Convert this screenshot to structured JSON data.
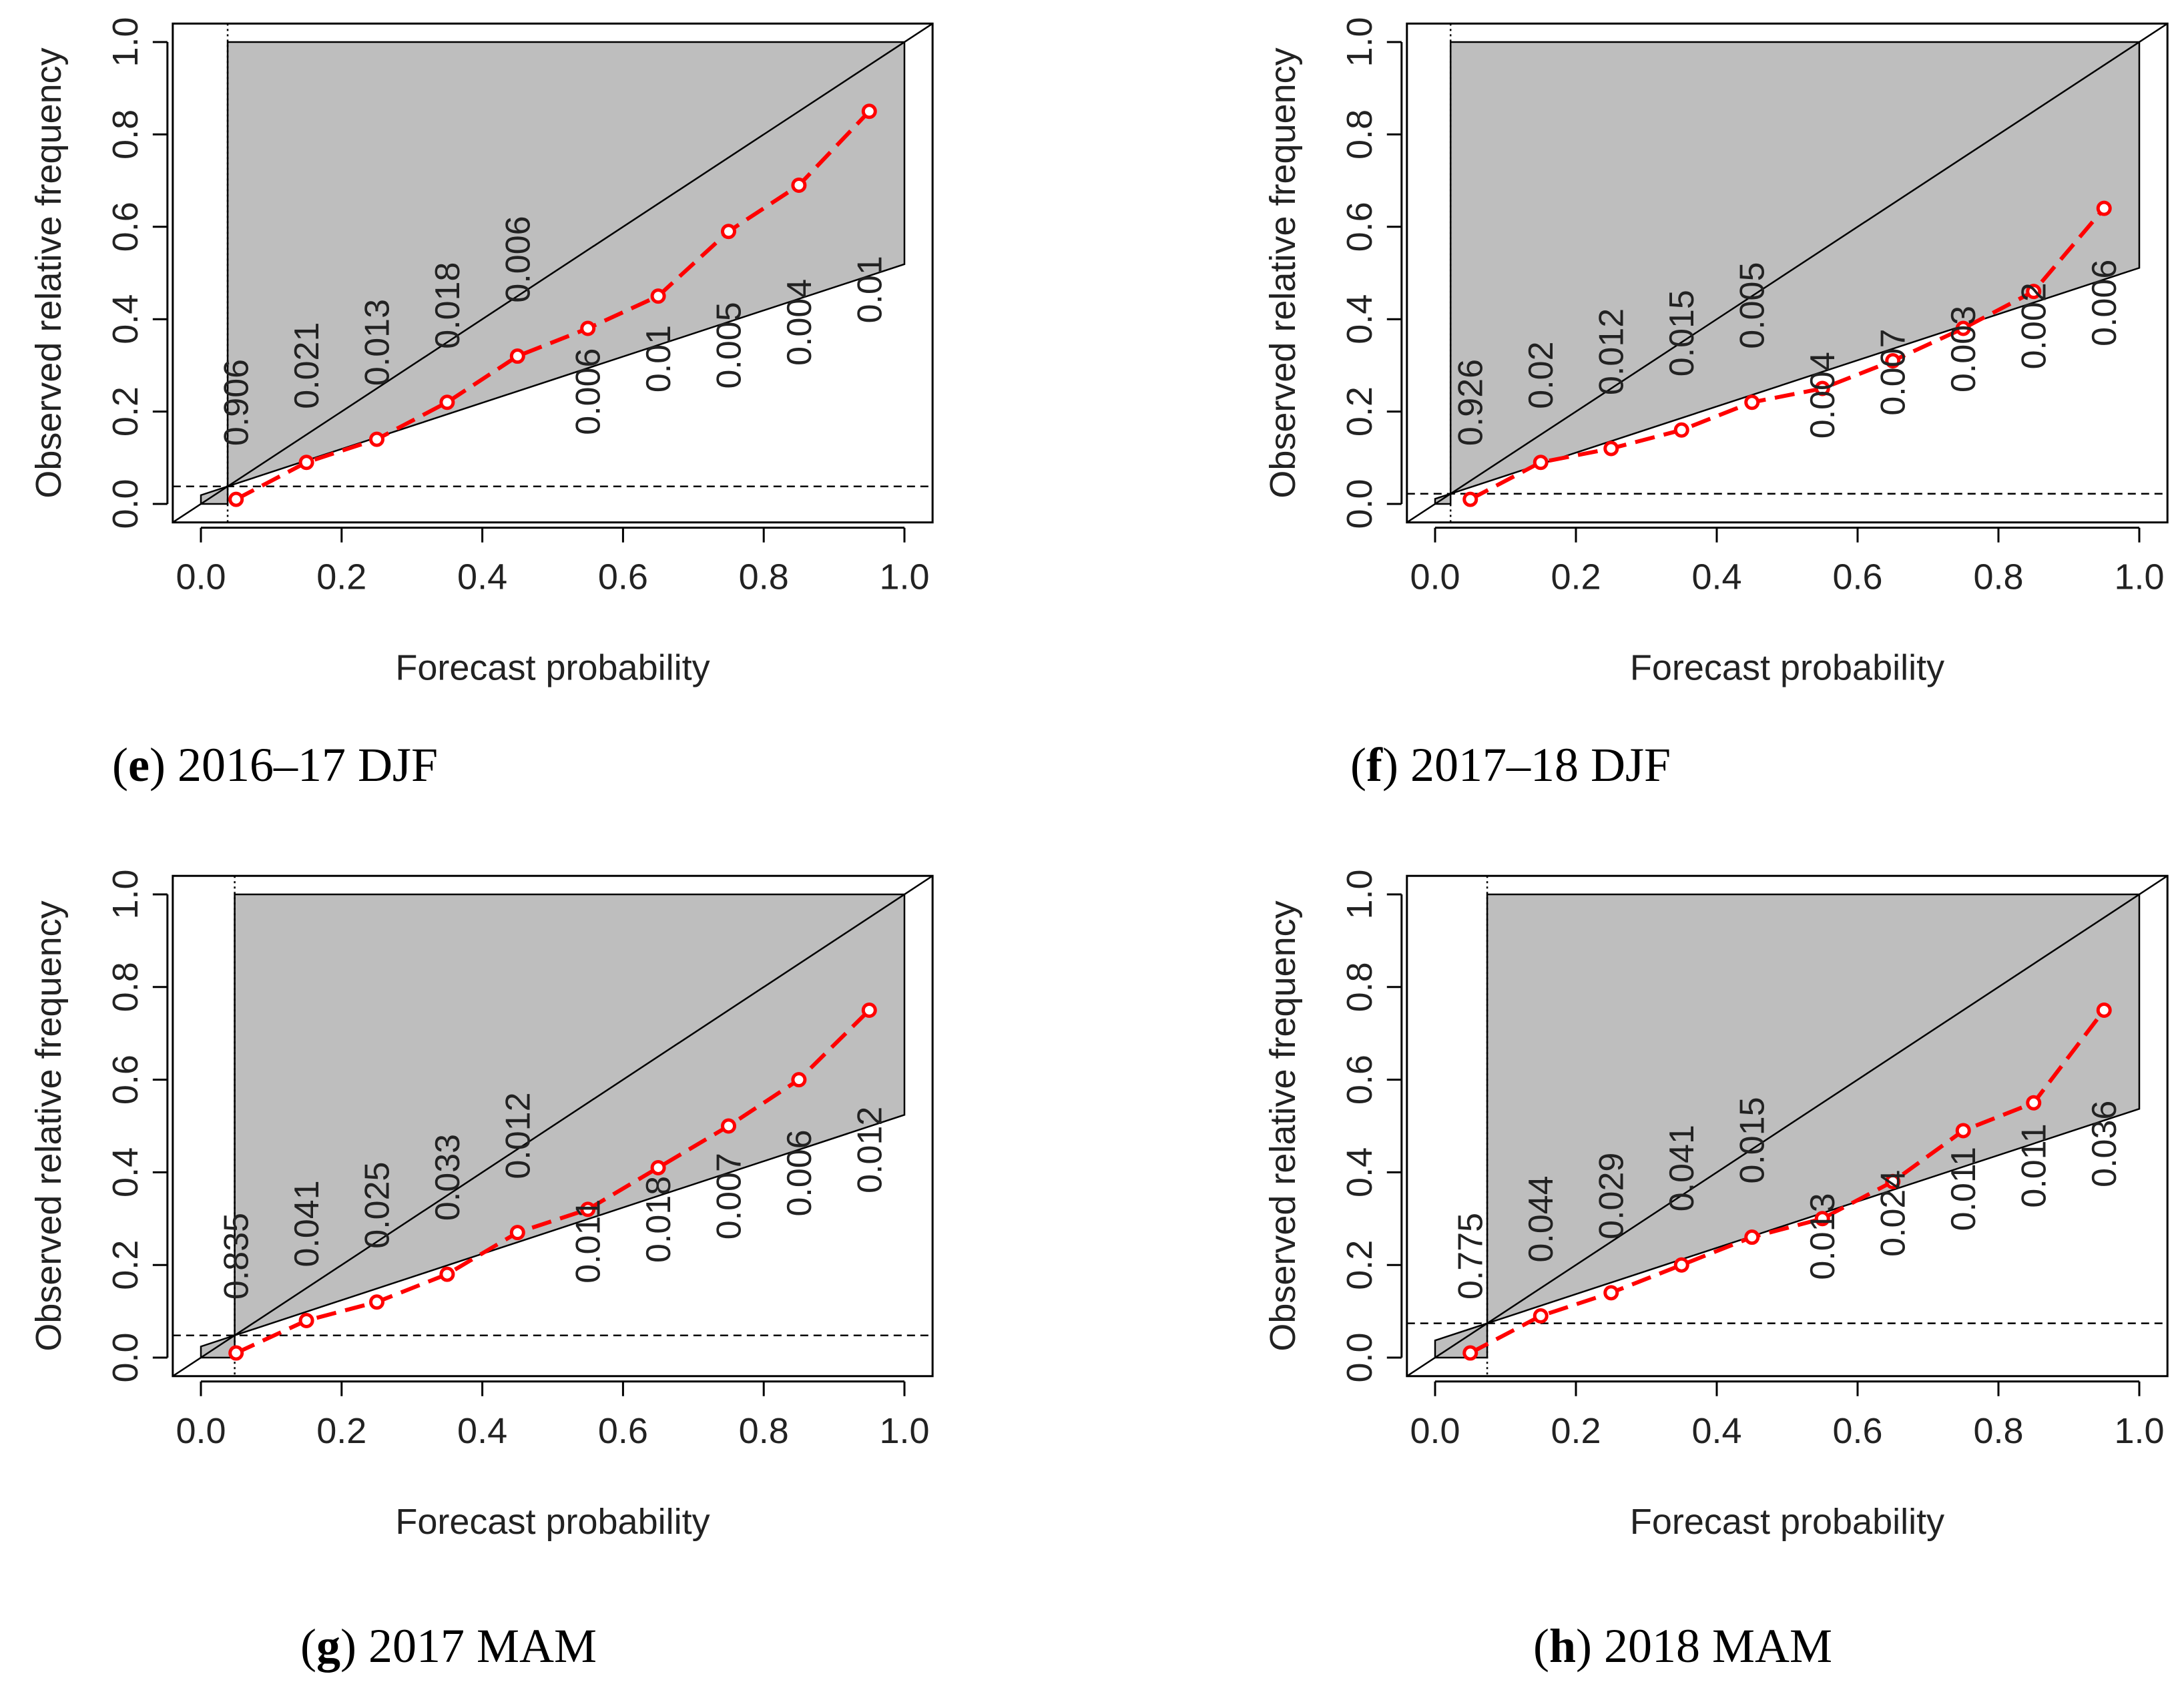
{
  "figure": {
    "panels": [
      {
        "letter": "e",
        "caption": "2016–17 DJF",
        "chart_data": {
          "type": "scatter",
          "title": "",
          "xlabel": "Forecast probability",
          "ylabel": "Observed relative frequency",
          "xlim": [
            0,
            1
          ],
          "ylim": [
            0,
            1
          ],
          "x_ticks": [
            "0.0",
            "0.2",
            "0.4",
            "0.6",
            "0.8",
            "1.0"
          ],
          "y_ticks": [
            "0.0",
            "0.2",
            "0.4",
            "0.6",
            "0.8",
            "1.0"
          ],
          "climatology": 0.038,
          "series": [
            {
              "name": "reliability",
              "color": "#ff0000",
              "x": [
                0.05,
                0.15,
                0.25,
                0.35,
                0.45,
                0.55,
                0.65,
                0.75,
                0.85,
                0.95
              ],
              "y": [
                0.01,
                0.09,
                0.14,
                0.22,
                0.32,
                0.38,
                0.45,
                0.59,
                0.69,
                0.85
              ]
            }
          ],
          "bin_frequencies": [
            "0.906",
            "0.021",
            "0.013",
            "0.018",
            "0.006",
            "0.006",
            "0.01",
            "0.005",
            "0.004",
            "0.01"
          ],
          "label_pos": [
            "above",
            "above",
            "above",
            "above",
            "above",
            "below",
            "below",
            "below",
            "below",
            "below"
          ]
        }
      },
      {
        "letter": "f",
        "caption": "2017–18 DJF",
        "chart_data": {
          "type": "scatter",
          "title": "",
          "xlabel": "Forecast probability",
          "ylabel": "Observed relative frequency",
          "xlim": [
            0,
            1
          ],
          "ylim": [
            0,
            1
          ],
          "x_ticks": [
            "0.0",
            "0.2",
            "0.4",
            "0.6",
            "0.8",
            "1.0"
          ],
          "y_ticks": [
            "0.0",
            "0.2",
            "0.4",
            "0.6",
            "0.8",
            "1.0"
          ],
          "climatology": 0.022,
          "series": [
            {
              "name": "reliability",
              "color": "#ff0000",
              "x": [
                0.05,
                0.15,
                0.25,
                0.35,
                0.45,
                0.55,
                0.65,
                0.75,
                0.85,
                0.95
              ],
              "y": [
                0.01,
                0.09,
                0.12,
                0.16,
                0.22,
                0.25,
                0.31,
                0.38,
                0.46,
                0.64
              ]
            }
          ],
          "bin_frequencies": [
            "0.926",
            "0.02",
            "0.012",
            "0.015",
            "0.005",
            "0.004",
            "0.007",
            "0.003",
            "0.002",
            "0.006"
          ],
          "label_pos": [
            "above",
            "above",
            "above",
            "above",
            "above",
            "below",
            "below",
            "below",
            "below",
            "below"
          ]
        }
      },
      {
        "letter": "g",
        "caption": "2017 MAM",
        "chart_data": {
          "type": "scatter",
          "title": "",
          "xlabel": "Forecast probability",
          "ylabel": "Observed relative frequency",
          "xlim": [
            0,
            1
          ],
          "ylim": [
            0,
            1
          ],
          "x_ticks": [
            "0.0",
            "0.2",
            "0.4",
            "0.6",
            "0.8",
            "1.0"
          ],
          "y_ticks": [
            "0.0",
            "0.2",
            "0.4",
            "0.6",
            "0.8",
            "1.0"
          ],
          "climatology": 0.048,
          "series": [
            {
              "name": "reliability",
              "color": "#ff0000",
              "x": [
                0.05,
                0.15,
                0.25,
                0.35,
                0.45,
                0.55,
                0.65,
                0.75,
                0.85,
                0.95
              ],
              "y": [
                0.01,
                0.08,
                0.12,
                0.18,
                0.27,
                0.32,
                0.41,
                0.5,
                0.6,
                0.75
              ]
            }
          ],
          "bin_frequencies": [
            "0.835",
            "0.041",
            "0.025",
            "0.033",
            "0.012",
            "0.011",
            "0.018",
            "0.007",
            "0.006",
            "0.012"
          ],
          "label_pos": [
            "above",
            "above",
            "above",
            "above",
            "above",
            "below",
            "below",
            "below",
            "below",
            "below"
          ]
        }
      },
      {
        "letter": "h",
        "caption": "2018 MAM",
        "chart_data": {
          "type": "scatter",
          "title": "",
          "xlabel": "Forecast probability",
          "ylabel": "Observed relative frequency",
          "xlim": [
            0,
            1
          ],
          "ylim": [
            0,
            1
          ],
          "x_ticks": [
            "0.0",
            "0.2",
            "0.4",
            "0.6",
            "0.8",
            "1.0"
          ],
          "y_ticks": [
            "0.0",
            "0.2",
            "0.4",
            "0.6",
            "0.8",
            "1.0"
          ],
          "climatology": 0.074,
          "series": [
            {
              "name": "reliability",
              "color": "#ff0000",
              "x": [
                0.05,
                0.15,
                0.25,
                0.35,
                0.45,
                0.55,
                0.65,
                0.75,
                0.85,
                0.95
              ],
              "y": [
                0.01,
                0.09,
                0.14,
                0.2,
                0.26,
                0.3,
                0.38,
                0.49,
                0.55,
                0.75
              ]
            }
          ],
          "bin_frequencies": [
            "0.775",
            "0.044",
            "0.029",
            "0.041",
            "0.015",
            "0.013",
            "0.024",
            "0.011",
            "0.011",
            "0.036"
          ],
          "label_pos": [
            "above",
            "above",
            "above",
            "above",
            "above",
            "below",
            "below",
            "below",
            "below",
            "below"
          ]
        }
      }
    ]
  }
}
